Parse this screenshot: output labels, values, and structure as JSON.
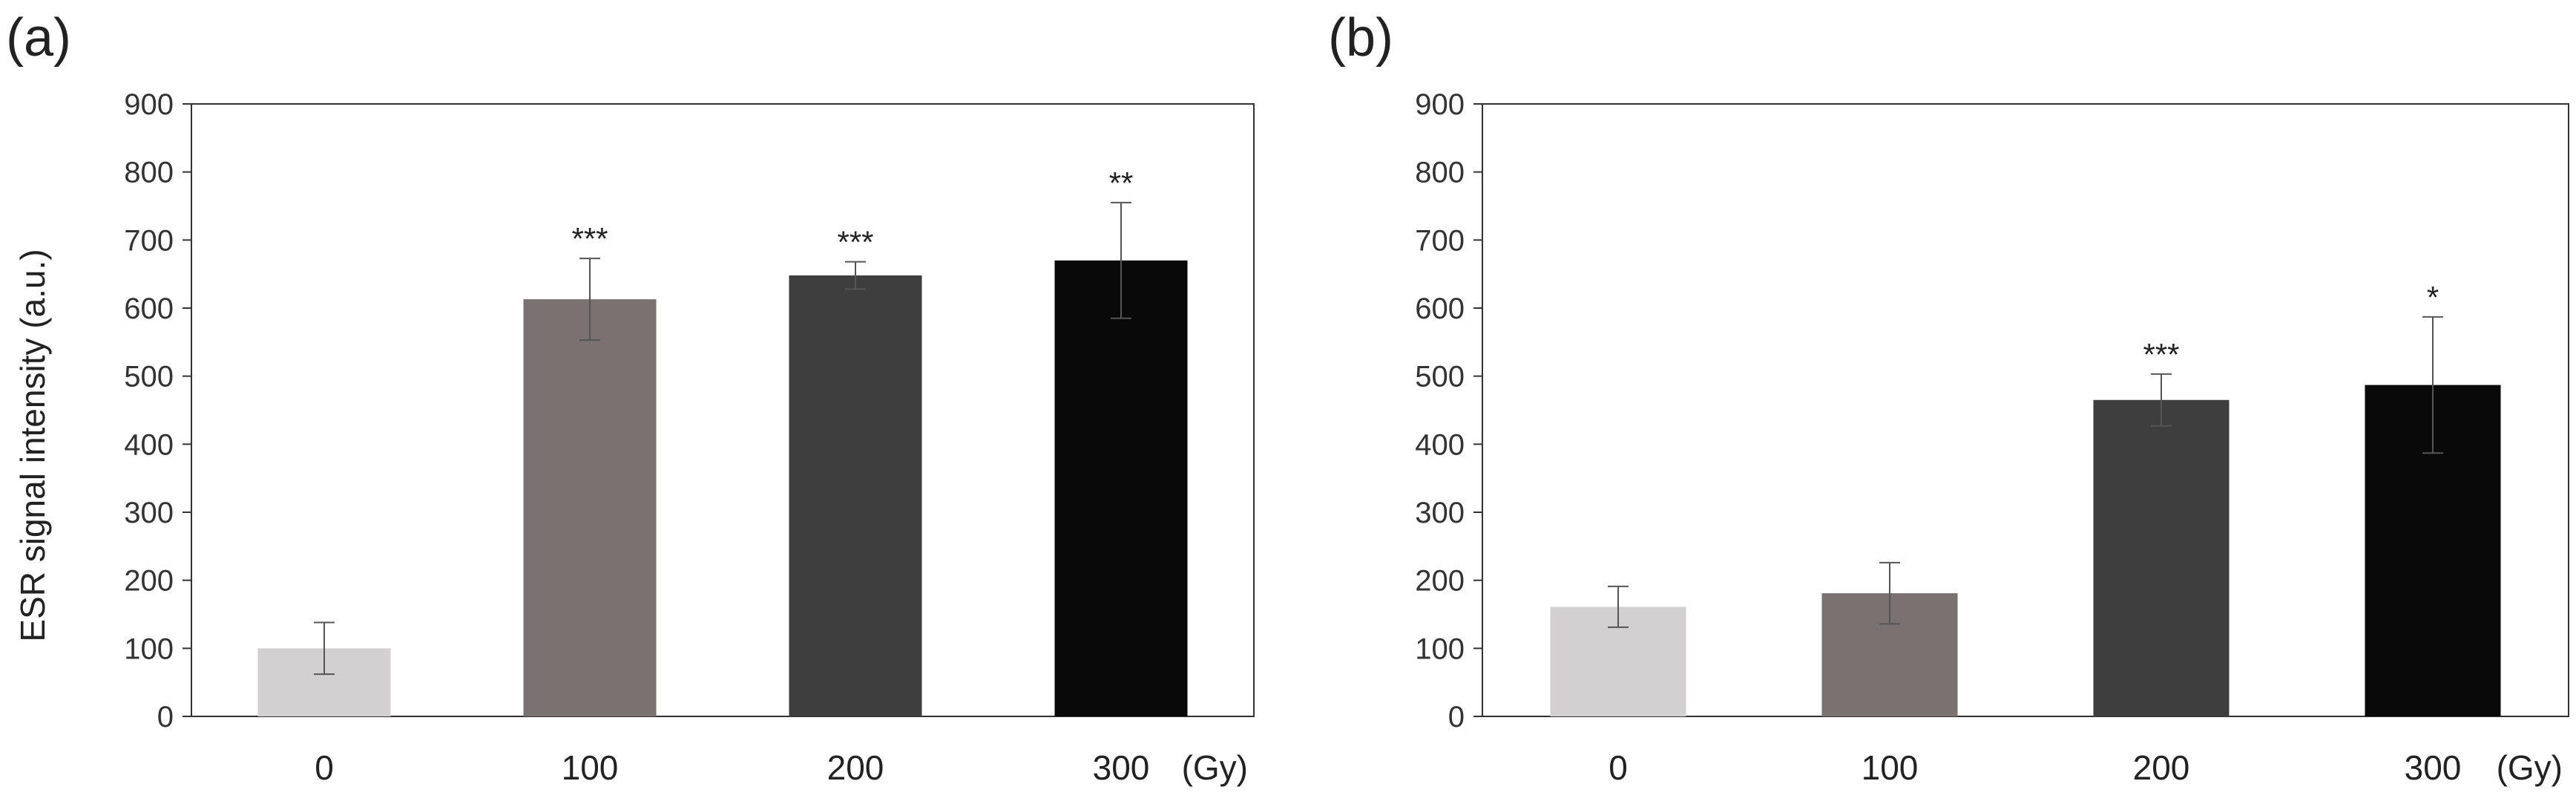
{
  "figure": {
    "ylabel": "ESR signal intensity (a.u.)",
    "x_unit": "(Gy)"
  },
  "chart_data": [
    {
      "type": "bar",
      "panel_label": "(a)",
      "title": "",
      "xlabel": "(Gy)",
      "ylabel": "ESR signal intensity (a.u.)",
      "categories": [
        "0",
        "100",
        "200",
        "300"
      ],
      "values": [
        100,
        613,
        648,
        670
      ],
      "errors": [
        38,
        60,
        20,
        85
      ],
      "significance": [
        "",
        "***",
        "***",
        "**"
      ],
      "colors": [
        "#d3d0d1",
        "#7a7271",
        "#3e3e3e",
        "#090909"
      ],
      "ylim": [
        0,
        900
      ],
      "yticks": [
        0,
        100,
        200,
        300,
        400,
        500,
        600,
        700,
        800,
        900
      ],
      "grid": false
    },
    {
      "type": "bar",
      "panel_label": "(b)",
      "title": "",
      "xlabel": "(Gy)",
      "ylabel": "",
      "categories": [
        "0",
        "100",
        "200",
        "300"
      ],
      "values": [
        161,
        181,
        465,
        487
      ],
      "errors": [
        30,
        45,
        38,
        100
      ],
      "significance": [
        "",
        "",
        "***",
        "*"
      ],
      "colors": [
        "#d3d0d1",
        "#7a7271",
        "#3e3e3e",
        "#090909"
      ],
      "ylim": [
        0,
        900
      ],
      "yticks": [
        0,
        100,
        200,
        300,
        400,
        500,
        600,
        700,
        800,
        900
      ],
      "grid": false
    }
  ]
}
